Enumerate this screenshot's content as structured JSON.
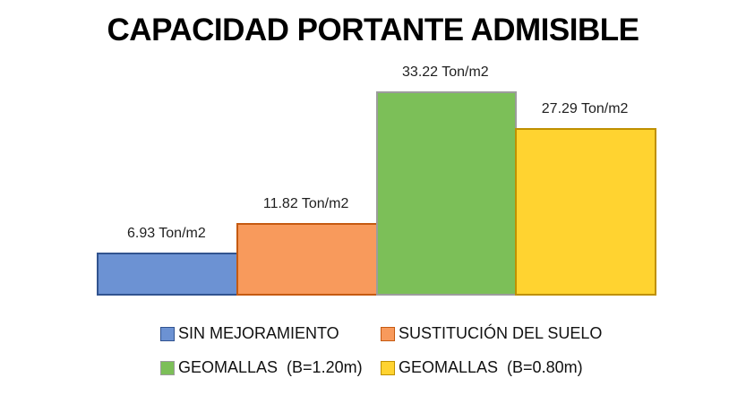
{
  "title": "CAPACIDAD PORTANTE ADMISIBLE",
  "chart_data": {
    "type": "bar",
    "title": "CAPACIDAD PORTANTE ADMISIBLE",
    "categories": [
      "SIN MEJORAMIENTO",
      "SUSTITUCIÓN DEL SUELO",
      "GEOMALLAS  (B=1.20m)",
      "GEOMALLAS  (B=0.80m)"
    ],
    "values": [
      6.93,
      11.82,
      33.22,
      27.29
    ],
    "data_labels": [
      "6.93 Ton/m2",
      "11.82 Ton/m2",
      "33.22 Ton/m2",
      "27.29 Ton/m2"
    ],
    "unit": "Ton/m2",
    "xlabel": "",
    "ylabel": "",
    "ylim": [
      0,
      35
    ],
    "grid": false,
    "axes_visible": false,
    "legend_position": "bottom",
    "series_colors": [
      {
        "name": "SIN MEJORAMIENTO",
        "fill": "#6C92D3",
        "border": "#31538F"
      },
      {
        "name": "SUSTITUCIÓN DEL SUELO",
        "fill": "#F89A5C",
        "border": "#C55A11"
      },
      {
        "name": "GEOMALLAS  (B=1.20m)",
        "fill": "#7CBF58",
        "border": "#9C9C9C"
      },
      {
        "name": "GEOMALLAS  (B=0.80m)",
        "fill": "#FFD330",
        "border": "#BF9000"
      }
    ],
    "text_color": "#000000"
  }
}
